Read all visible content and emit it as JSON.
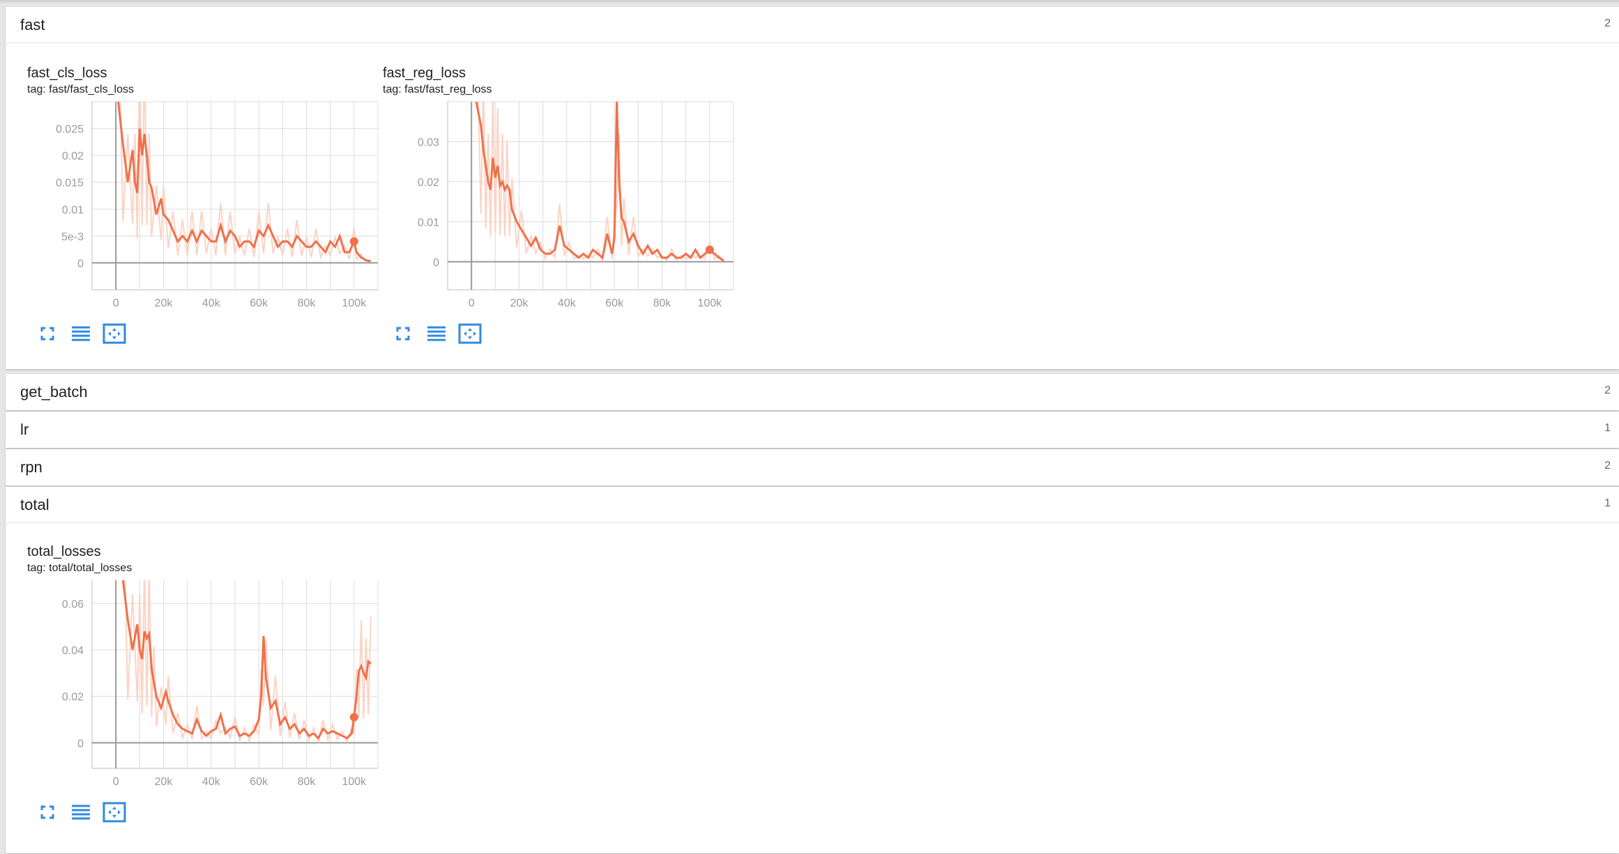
{
  "groups": [
    {
      "name": "fast",
      "count": "2"
    },
    {
      "name": "get_batch",
      "count": "2"
    },
    {
      "name": "lr",
      "count": "1"
    },
    {
      "name": "rpn",
      "count": "2"
    },
    {
      "name": "total",
      "count": "1"
    }
  ],
  "charts": [
    {
      "title": "fast_cls_loss",
      "tag": "tag: fast/fast_cls_loss"
    },
    {
      "title": "fast_reg_loss",
      "tag": "tag: fast/fast_reg_loss"
    },
    {
      "title": "total_losses",
      "tag": "tag: total/total_losses"
    }
  ],
  "icons": {
    "expand": "fullscreen-icon",
    "data": "list-icon",
    "fit": "fit-domain-icon"
  },
  "colors": {
    "series": "#f0704a",
    "series_raw": "#fbd3c5"
  },
  "chart_data": [
    {
      "type": "line",
      "xlabel": "",
      "ylabel": "",
      "xlim": [
        -10000,
        110000
      ],
      "ylim": [
        -0.005,
        0.03
      ],
      "xticks": [
        "0",
        "20k",
        "40k",
        "60k",
        "80k",
        "100k"
      ],
      "yticks": [
        "0",
        "5e-3",
        "0.01",
        "0.015",
        "0.02",
        "0.025"
      ],
      "x": [
        1000,
        3000,
        5000,
        7000,
        8000,
        9000,
        10000,
        11000,
        12000,
        13000,
        14000,
        15000,
        17000,
        19000,
        20000,
        22000,
        24000,
        26000,
        28000,
        30000,
        32000,
        34000,
        36000,
        38000,
        40000,
        42000,
        44000,
        46000,
        48000,
        50000,
        52000,
        54000,
        56000,
        58000,
        60000,
        62000,
        64000,
        66000,
        68000,
        70000,
        72000,
        74000,
        76000,
        78000,
        80000,
        82000,
        84000,
        86000,
        88000,
        90000,
        92000,
        94000,
        96000,
        98000,
        100000,
        101000,
        103000,
        105000,
        107000
      ],
      "series": [
        {
          "values": [
            0.03,
            0.022,
            0.015,
            0.021,
            0.015,
            0.013,
            0.025,
            0.02,
            0.024,
            0.02,
            0.015,
            0.014,
            0.009,
            0.012,
            0.009,
            0.008,
            0.006,
            0.004,
            0.005,
            0.004,
            0.006,
            0.004,
            0.006,
            0.005,
            0.004,
            0.004,
            0.007,
            0.004,
            0.006,
            0.005,
            0.003,
            0.004,
            0.004,
            0.003,
            0.006,
            0.005,
            0.007,
            0.005,
            0.003,
            0.004,
            0.004,
            0.003,
            0.005,
            0.004,
            0.003,
            0.003,
            0.004,
            0.003,
            0.002,
            0.004,
            0.003,
            0.005,
            0.002,
            0.002,
            0.004,
            0.002,
            0.001,
            0.0005,
            0.0003
          ]
        }
      ]
    },
    {
      "type": "line",
      "xlabel": "",
      "ylabel": "",
      "xlim": [
        -10000,
        110000
      ],
      "ylim": [
        -0.007,
        0.04
      ],
      "xticks": [
        "0",
        "20k",
        "40k",
        "60k",
        "80k",
        "100k"
      ],
      "yticks": [
        "0",
        "0.01",
        "0.02",
        "0.03"
      ],
      "x": [
        2000,
        4000,
        5000,
        6000,
        7000,
        8000,
        9000,
        10000,
        11000,
        12000,
        13000,
        14000,
        15000,
        16000,
        17000,
        19000,
        21000,
        23000,
        25000,
        27000,
        29000,
        31000,
        33000,
        35000,
        37000,
        39000,
        41000,
        43000,
        45000,
        47000,
        49000,
        51000,
        53000,
        55000,
        57000,
        59000,
        60000,
        61000,
        62000,
        63000,
        64000,
        66000,
        68000,
        70000,
        72000,
        74000,
        76000,
        78000,
        80000,
        82000,
        84000,
        86000,
        88000,
        90000,
        92000,
        94000,
        96000,
        98000,
        100000,
        102000,
        104000,
        106000
      ],
      "series": [
        {
          "values": [
            0.04,
            0.034,
            0.028,
            0.024,
            0.02,
            0.018,
            0.026,
            0.021,
            0.024,
            0.019,
            0.02,
            0.018,
            0.019,
            0.018,
            0.013,
            0.01,
            0.008,
            0.006,
            0.004,
            0.006,
            0.003,
            0.002,
            0.002,
            0.003,
            0.009,
            0.004,
            0.003,
            0.002,
            0.001,
            0.002,
            0.001,
            0.003,
            0.002,
            0.001,
            0.007,
            0.002,
            0.006,
            0.04,
            0.02,
            0.011,
            0.01,
            0.005,
            0.007,
            0.004,
            0.002,
            0.004,
            0.002,
            0.003,
            0.001,
            0.001,
            0.002,
            0.001,
            0.001,
            0.002,
            0.001,
            0.003,
            0.001,
            0.002,
            0.003,
            0.002,
            0.001,
            0.0002
          ]
        }
      ]
    },
    {
      "type": "line",
      "xlabel": "",
      "ylabel": "",
      "xlim": [
        -10000,
        110000
      ],
      "ylim": [
        -0.011,
        0.07
      ],
      "xticks": [
        "0",
        "20k",
        "40k",
        "60k",
        "80k",
        "100k"
      ],
      "yticks": [
        "0",
        "0.02",
        "0.04",
        "0.06"
      ],
      "x": [
        3000,
        5000,
        7000,
        9000,
        10000,
        11000,
        12000,
        13000,
        14000,
        15000,
        16000,
        17000,
        19000,
        21000,
        22000,
        24000,
        26000,
        28000,
        30000,
        32000,
        34000,
        36000,
        38000,
        40000,
        42000,
        44000,
        46000,
        48000,
        50000,
        52000,
        54000,
        56000,
        58000,
        60000,
        61000,
        62000,
        63000,
        65000,
        67000,
        69000,
        71000,
        73000,
        75000,
        77000,
        79000,
        81000,
        83000,
        85000,
        87000,
        89000,
        91000,
        93000,
        95000,
        97000,
        99000,
        100000,
        101000,
        102000,
        103000,
        104000,
        105000,
        106000,
        107000
      ],
      "series": [
        {
          "values": [
            0.07,
            0.053,
            0.04,
            0.051,
            0.04,
            0.036,
            0.048,
            0.045,
            0.047,
            0.032,
            0.026,
            0.02,
            0.015,
            0.022,
            0.018,
            0.012,
            0.008,
            0.006,
            0.005,
            0.004,
            0.01,
            0.005,
            0.003,
            0.005,
            0.006,
            0.012,
            0.004,
            0.006,
            0.007,
            0.003,
            0.004,
            0.003,
            0.005,
            0.01,
            0.02,
            0.046,
            0.028,
            0.015,
            0.018,
            0.008,
            0.011,
            0.006,
            0.008,
            0.004,
            0.006,
            0.003,
            0.004,
            0.002,
            0.006,
            0.004,
            0.005,
            0.004,
            0.003,
            0.002,
            0.004,
            0.011,
            0.02,
            0.031,
            0.033,
            0.03,
            0.028,
            0.035,
            0.034
          ]
        }
      ]
    }
  ]
}
